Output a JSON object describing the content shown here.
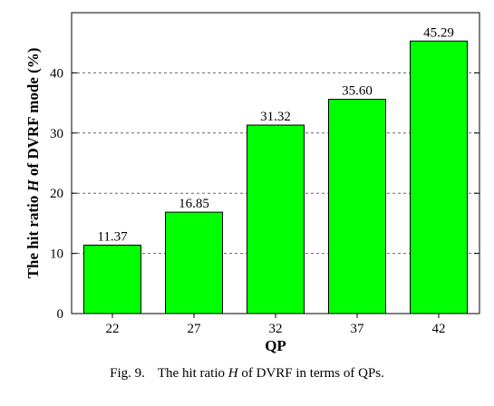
{
  "chart_data": {
    "type": "bar",
    "categories": [
      "22",
      "27",
      "32",
      "37",
      "42"
    ],
    "values": [
      11.37,
      16.85,
      31.32,
      35.6,
      45.29
    ],
    "value_labels": [
      "11.37",
      "16.85",
      "31.32",
      "35.60",
      "45.29"
    ],
    "xlabel": "QP",
    "ylabel_parts": [
      "The hit ratio ",
      "H",
      " of DVRF mode (%)"
    ],
    "ylim": [
      0,
      50
    ],
    "yticks": [
      0,
      10,
      20,
      30,
      40
    ],
    "ytick_labels": [
      "0",
      "10",
      "20",
      "30",
      "40"
    ],
    "grid": "horizontal dashed",
    "bar_color": "#00ff00",
    "bar_edge_color": "#000000"
  },
  "caption": {
    "label": "Fig. 9.",
    "text_before": "The hit ratio ",
    "text_italic": "H",
    "text_after": " of DVRF in terms of QPs."
  }
}
